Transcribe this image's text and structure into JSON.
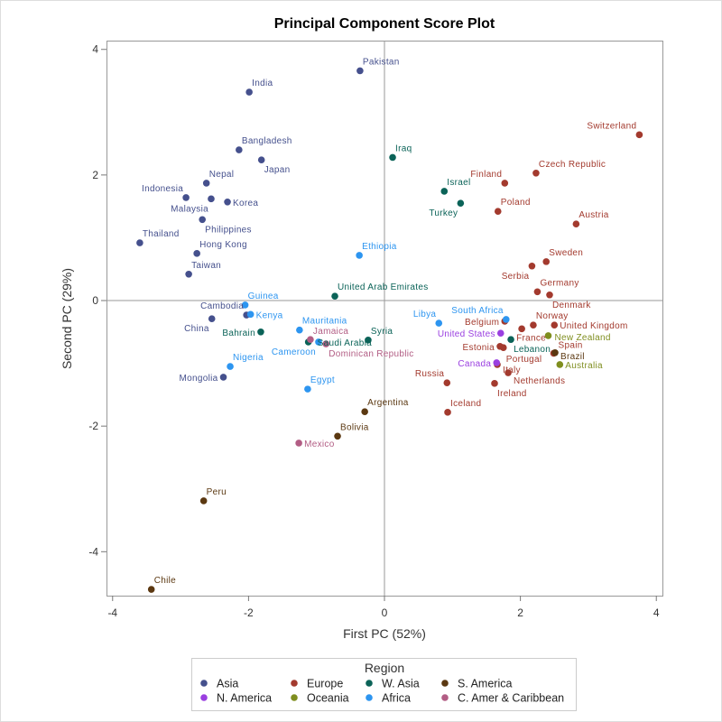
{
  "chart_data": {
    "type": "scatter",
    "title": "Principal Component Score Plot",
    "xlabel": "First PC (52%)",
    "ylabel": "Second PC (29%)",
    "xlim": [
      -4.09,
      4.09
    ],
    "ylim": [
      -4.7,
      4.14
    ],
    "xticks": [
      -4,
      -2,
      0,
      2,
      4
    ],
    "yticks": [
      -4,
      -2,
      0,
      2,
      4
    ],
    "reference_lines": {
      "x": 0,
      "y": 0
    },
    "legend": {
      "title": "Region",
      "placement": "bottom"
    },
    "groups": [
      {
        "name": "Asia",
        "color": "#45508d"
      },
      {
        "name": "Europe",
        "color": "#a33a2e"
      },
      {
        "name": "W. Asia",
        "color": "#0b6358"
      },
      {
        "name": "S. America",
        "color": "#5b3811"
      },
      {
        "name": "N. America",
        "color": "#9a3fe0"
      },
      {
        "name": "Oceania",
        "color": "#7f8e1f"
      },
      {
        "name": "Africa",
        "color": "#2d95f0"
      },
      {
        "name": "C. Amer & Caribbean",
        "color": "#b25d84"
      }
    ],
    "points": [
      {
        "label": "Pakistan",
        "group": "Asia",
        "x": -0.36,
        "y": 3.66
      },
      {
        "label": "India",
        "group": "Asia",
        "x": -1.99,
        "y": 3.32
      },
      {
        "label": "Bangladesh",
        "group": "Asia",
        "x": -2.14,
        "y": 2.4
      },
      {
        "label": "Japan",
        "group": "Asia",
        "x": -1.81,
        "y": 2.24
      },
      {
        "label": "Nepal",
        "group": "Asia",
        "x": -2.62,
        "y": 1.87
      },
      {
        "label": "Indonesia",
        "group": "Asia",
        "x": -2.92,
        "y": 1.64
      },
      {
        "label": "Malaysia",
        "group": "Asia",
        "x": -2.55,
        "y": 1.62
      },
      {
        "label": "Korea",
        "group": "Asia",
        "x": -2.31,
        "y": 1.57
      },
      {
        "label": "Philippines",
        "group": "Asia",
        "x": -2.68,
        "y": 1.29
      },
      {
        "label": "Thailand",
        "group": "Asia",
        "x": -3.6,
        "y": 0.92
      },
      {
        "label": "Hong Kong",
        "group": "Asia",
        "x": -2.76,
        "y": 0.75
      },
      {
        "label": "Taiwan",
        "group": "Asia",
        "x": -2.88,
        "y": 0.42
      },
      {
        "label": "Cambodia",
        "group": "Asia",
        "x": -2.03,
        "y": -0.23
      },
      {
        "label": "China",
        "group": "Asia",
        "x": -2.54,
        "y": -0.29
      },
      {
        "label": "Mongolia",
        "group": "Asia",
        "x": -2.37,
        "y": -1.22
      },
      {
        "label": "Switzerland",
        "group": "Europe",
        "x": 3.75,
        "y": 2.64
      },
      {
        "label": "Czech Republic",
        "group": "Europe",
        "x": 2.23,
        "y": 2.03
      },
      {
        "label": "Finland",
        "group": "Europe",
        "x": 1.77,
        "y": 1.87
      },
      {
        "label": "Poland",
        "group": "Europe",
        "x": 1.67,
        "y": 1.42
      },
      {
        "label": "Austria",
        "group": "Europe",
        "x": 2.82,
        "y": 1.22
      },
      {
        "label": "Sweden",
        "group": "Europe",
        "x": 2.38,
        "y": 0.62
      },
      {
        "label": "Serbia",
        "group": "Europe",
        "x": 2.17,
        "y": 0.55
      },
      {
        "label": "Germany",
        "group": "Europe",
        "x": 2.25,
        "y": 0.14
      },
      {
        "label": "Denmark",
        "group": "Europe",
        "x": 2.43,
        "y": 0.09
      },
      {
        "label": "Belgium",
        "group": "Europe",
        "x": 1.77,
        "y": -0.33
      },
      {
        "label": "Norway",
        "group": "Europe",
        "x": 2.19,
        "y": -0.39
      },
      {
        "label": "France",
        "group": "Europe",
        "x": 2.02,
        "y": -0.45
      },
      {
        "label": "United Kingdom",
        "group": "Europe",
        "x": 2.5,
        "y": -0.39
      },
      {
        "label": "Estonia",
        "group": "Europe",
        "x": 1.7,
        "y": -0.73
      },
      {
        "label": "Portugal",
        "group": "Europe",
        "x": 1.75,
        "y": -0.75
      },
      {
        "label": "Spain",
        "group": "Europe",
        "x": 2.49,
        "y": -0.84
      },
      {
        "label": "Italy",
        "group": "Europe",
        "x": 1.66,
        "y": -1.02
      },
      {
        "label": "Netherlands",
        "group": "Europe",
        "x": 1.82,
        "y": -1.15
      },
      {
        "label": "Russia",
        "group": "Europe",
        "x": 0.92,
        "y": -1.31
      },
      {
        "label": "Ireland",
        "group": "Europe",
        "x": 1.62,
        "y": -1.32
      },
      {
        "label": "Iceland",
        "group": "Europe",
        "x": 0.93,
        "y": -1.78
      },
      {
        "label": "Iraq",
        "group": "W. Asia",
        "x": 0.12,
        "y": 2.28
      },
      {
        "label": "Israel",
        "group": "W. Asia",
        "x": 0.88,
        "y": 1.74
      },
      {
        "label": "Turkey",
        "group": "W. Asia",
        "x": 1.12,
        "y": 1.55
      },
      {
        "label": "United Arab Emirates",
        "group": "W. Asia",
        "x": -0.73,
        "y": 0.07
      },
      {
        "label": "Bahrain",
        "group": "W. Asia",
        "x": -1.82,
        "y": -0.5
      },
      {
        "label": "Saudi Arabia",
        "group": "W. Asia",
        "x": -1.12,
        "y": -0.66
      },
      {
        "label": "Syria",
        "group": "W. Asia",
        "x": -0.24,
        "y": -0.63
      },
      {
        "label": "Lebanon",
        "group": "W. Asia",
        "x": 1.86,
        "y": -0.62
      },
      {
        "label": "Ethiopia",
        "group": "Africa",
        "x": -0.37,
        "y": 0.72
      },
      {
        "label": "Guinea",
        "group": "Africa",
        "x": -2.05,
        "y": -0.07
      },
      {
        "label": "Kenya",
        "group": "Africa",
        "x": -1.97,
        "y": -0.22
      },
      {
        "label": "Mauritania",
        "group": "Africa",
        "x": -1.25,
        "y": -0.47
      },
      {
        "label": "Cameroon",
        "group": "Africa",
        "x": -0.97,
        "y": -0.66
      },
      {
        "label": "Nigeria",
        "group": "Africa",
        "x": -2.27,
        "y": -1.05
      },
      {
        "label": "Egypt",
        "group": "Africa",
        "x": -1.13,
        "y": -1.41
      },
      {
        "label": "Libya",
        "group": "Africa",
        "x": 0.8,
        "y": -0.36
      },
      {
        "label": "South Africa",
        "group": "Africa",
        "x": 1.79,
        "y": -0.3
      },
      {
        "label": "United States",
        "group": "N. America",
        "x": 1.71,
        "y": -0.52
      },
      {
        "label": "Canada",
        "group": "N. America",
        "x": 1.65,
        "y": -0.99
      },
      {
        "label": "New Zealand",
        "group": "Oceania",
        "x": 2.41,
        "y": -0.56
      },
      {
        "label": "Australia",
        "group": "Oceania",
        "x": 2.58,
        "y": -1.02
      },
      {
        "label": "Argentina",
        "group": "S. America",
        "x": -0.29,
        "y": -1.77
      },
      {
        "label": "Bolivia",
        "group": "S. America",
        "x": -0.69,
        "y": -2.16
      },
      {
        "label": "Peru",
        "group": "S. America",
        "x": -2.66,
        "y": -3.19
      },
      {
        "label": "Chile",
        "group": "S. America",
        "x": -3.43,
        "y": -4.6
      },
      {
        "label": "Brazil",
        "group": "S. America",
        "x": 2.51,
        "y": -0.83
      },
      {
        "label": "Mexico",
        "group": "C. Amer & Caribbean",
        "x": -1.26,
        "y": -2.27
      },
      {
        "label": "Jamaica",
        "group": "C. Amer & Caribbean",
        "x": -1.09,
        "y": -0.62
      },
      {
        "label": "Dominican Republic",
        "group": "C. Amer & Caribbean",
        "x": -0.86,
        "y": -0.69
      }
    ]
  }
}
